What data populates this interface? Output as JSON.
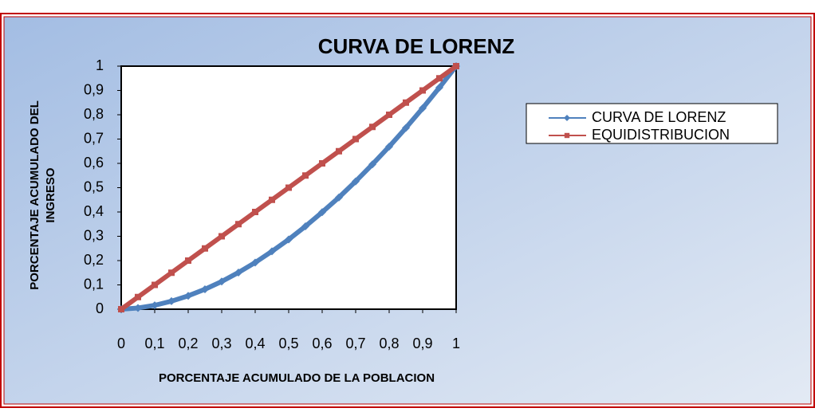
{
  "chart_data": {
    "type": "line",
    "title": "CURVA DE LORENZ",
    "x_label": "PORCENTAJE ACUMULADO DE LA POBLACION",
    "y_label": [
      "PORCENTAJE ACUMULADO DEL",
      "INGRESO"
    ],
    "x": [
      0,
      0.05,
      0.1,
      0.15,
      0.2,
      0.25,
      0.3,
      0.35,
      0.4,
      0.45,
      0.5,
      0.55,
      0.6,
      0.65,
      0.7,
      0.75,
      0.8,
      0.85,
      0.9,
      0.95,
      1
    ],
    "series": [
      {
        "name": "CURVA DE LORENZ",
        "color": "#4f81bd",
        "marker": "diamond",
        "values": [
          0,
          0.005,
          0.016,
          0.033,
          0.055,
          0.082,
          0.114,
          0.151,
          0.192,
          0.238,
          0.287,
          0.341,
          0.399,
          0.46,
          0.526,
          0.596,
          0.669,
          0.746,
          0.827,
          0.912,
          1
        ]
      },
      {
        "name": "EQUIDISTRIBUCION",
        "color": "#c0504d",
        "marker": "square",
        "values": [
          0,
          0.05,
          0.1,
          0.15,
          0.2,
          0.25,
          0.3,
          0.35,
          0.4,
          0.45,
          0.5,
          0.55,
          0.6,
          0.65,
          0.7,
          0.75,
          0.8,
          0.85,
          0.9,
          0.95,
          1
        ]
      }
    ],
    "xlim": [
      0,
      1
    ],
    "ylim": [
      0,
      1
    ],
    "xticks": [
      0,
      {
        "value": 0.1,
        "label": "0,1"
      },
      {
        "value": 0.2,
        "label": "0,2"
      },
      {
        "value": 0.3,
        "label": "0,3"
      },
      {
        "value": 0.4,
        "label": "0,4"
      },
      {
        "value": 0.5,
        "label": "0,5"
      },
      {
        "value": 0.6,
        "label": "0,6"
      },
      {
        "value": 0.7,
        "label": "0,7"
      },
      {
        "value": 0.8,
        "label": "0,8"
      },
      {
        "value": 0.9,
        "label": "0,9"
      },
      1
    ],
    "yticks": [
      0,
      {
        "value": 0.1,
        "label": "0,1"
      },
      {
        "value": 0.2,
        "label": "0,2"
      },
      {
        "value": 0.3,
        "label": "0,3"
      },
      {
        "value": 0.4,
        "label": "0,4"
      },
      {
        "value": 0.5,
        "label": "0,5"
      },
      {
        "value": 0.6,
        "label": "0,6"
      },
      {
        "value": 0.7,
        "label": "0,7"
      },
      {
        "value": 0.8,
        "label": "0,8"
      },
      {
        "value": 0.9,
        "label": "0,9"
      },
      1
    ],
    "grid": false,
    "legend": "right"
  }
}
